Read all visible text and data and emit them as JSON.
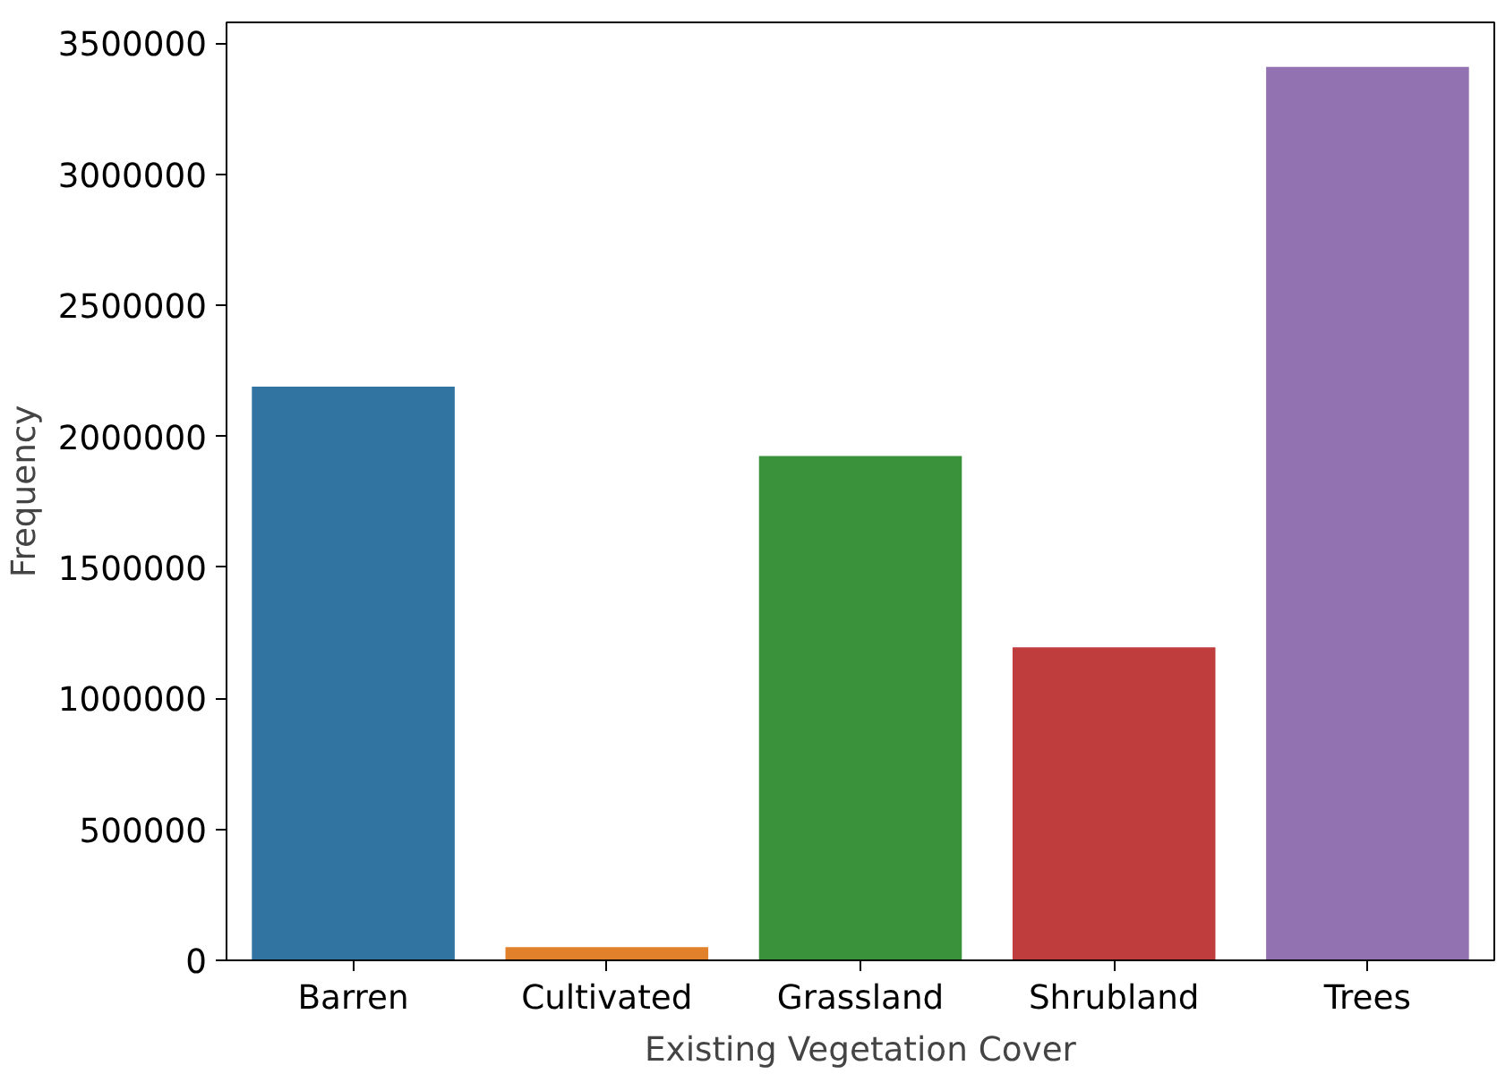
{
  "chart_data": {
    "type": "bar",
    "xlabel": "Existing Vegetation Cover",
    "ylabel": "Frequency",
    "categories": [
      "Barren",
      "Cultivated",
      "Grassland",
      "Shrubland",
      "Trees"
    ],
    "values": [
      2190000,
      50000,
      1925000,
      1195000,
      3410000
    ],
    "colors": [
      "#3274a1",
      "#e1812c",
      "#3a923a",
      "#c03d3e",
      "#9372b2"
    ],
    "ylim": [
      0,
      3580000
    ],
    "yticks": [
      0,
      500000,
      1000000,
      1500000,
      2000000,
      2500000,
      3000000,
      3500000
    ],
    "grid": false
  }
}
